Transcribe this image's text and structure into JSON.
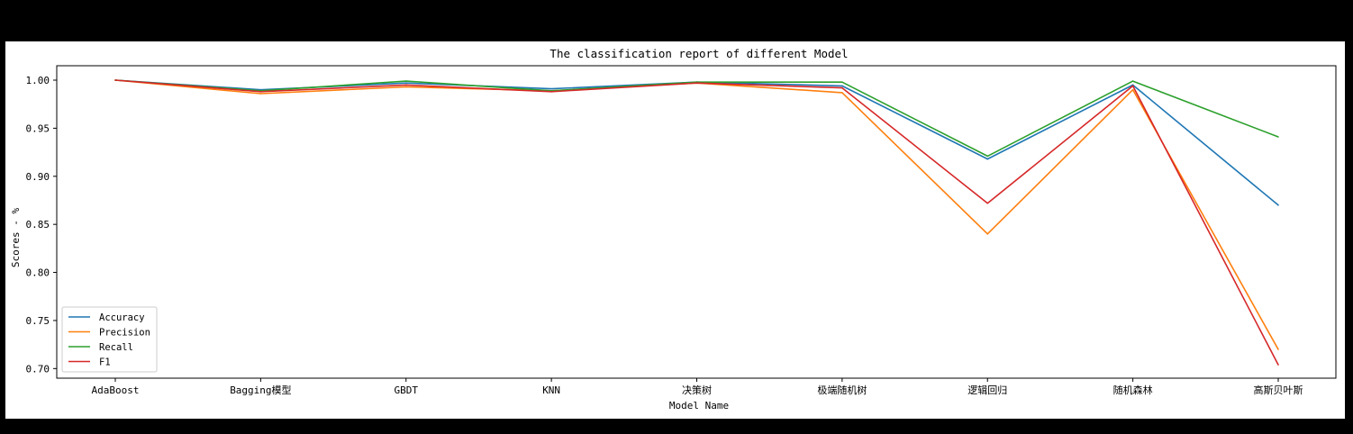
{
  "chart_data": {
    "type": "line",
    "title": "The classification report of different Model",
    "xlabel": "Model Name",
    "ylabel": "Scores - %",
    "categories": [
      "AdaBoost",
      "Bagging模型",
      "GBDT",
      "KNN",
      "决策树",
      "极端随机树",
      "逻辑回归",
      "随机森林",
      "高斯贝叶斯"
    ],
    "ylim": [
      0.69,
      1.015
    ],
    "yticks": [
      "0.70",
      "0.75",
      "0.80",
      "0.85",
      "0.90",
      "0.95",
      "1.00"
    ],
    "legend_position": "lower-left",
    "grid": false,
    "series": [
      {
        "name": "Accuracy",
        "color": "#1f77b4",
        "values": [
          1.0,
          0.99,
          0.997,
          0.991,
          0.998,
          0.994,
          0.918,
          0.995,
          0.87
        ]
      },
      {
        "name": "Precision",
        "color": "#ff7f0e",
        "values": [
          1.0,
          0.986,
          0.993,
          0.989,
          0.997,
          0.987,
          0.84,
          0.99,
          0.72
        ]
      },
      {
        "name": "Recall",
        "color": "#2ca02c",
        "values": [
          1.0,
          0.989,
          0.999,
          0.989,
          0.998,
          0.998,
          0.921,
          0.999,
          0.941
        ]
      },
      {
        "name": "F1",
        "color": "#d62728",
        "values": [
          1.0,
          0.988,
          0.995,
          0.988,
          0.997,
          0.992,
          0.872,
          0.994,
          0.704
        ]
      }
    ]
  }
}
